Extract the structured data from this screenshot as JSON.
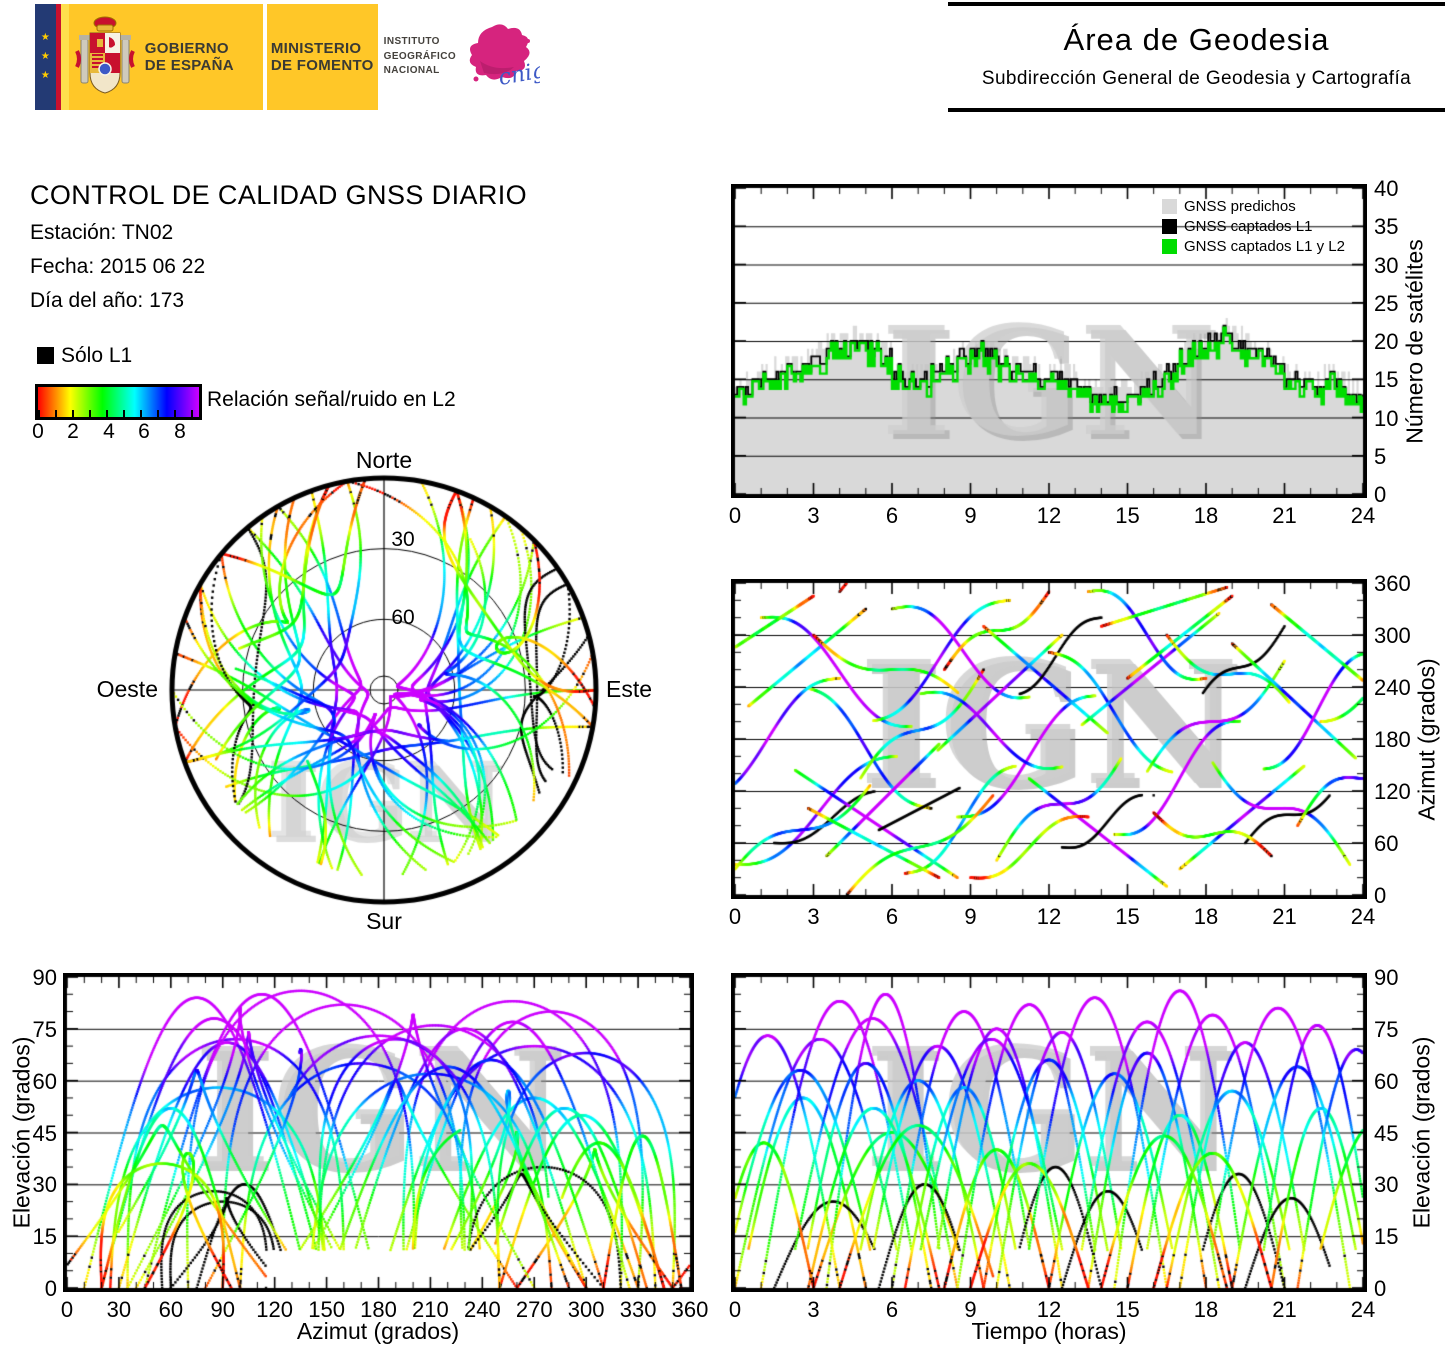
{
  "header": {
    "gobierno_line1": "GOBIERNO",
    "gobierno_line2": "DE ESPAÑA",
    "ministerio_line1": "MINISTERIO",
    "ministerio_line2": "DE FOMENTO",
    "instituto_lines": [
      "INSTITUTO",
      "GEOGRÁFICO",
      "NACIONAL"
    ],
    "cnig_text": "cnig",
    "area_title": "Área de Geodesia",
    "area_subtitle": "Subdirección General de Geodesia y Cartografía"
  },
  "info": {
    "title": "CONTROL DE CALIDAD GNSS DIARIO",
    "station": "Estación: TN02",
    "date": "Fecha: 2015 06 22",
    "doy": "Día del año: 173"
  },
  "legend": {
    "solo_l1_label": "Sólo L1",
    "colorbar_label": "Relación señal/ruido en L2",
    "colorbar_ticks": [
      "0",
      "2",
      "4",
      "6",
      "8"
    ],
    "colorbar_min": 0,
    "colorbar_max": 9
  },
  "watermark": "IGN",
  "colors": {
    "accent_yellow": "#ffc728",
    "navy": "#233a74",
    "flag_red": "#c8102e",
    "predicted_gray": "#d9d9d9",
    "captured_l1": "#000000",
    "captured_l1l2": "#00dd00"
  },
  "skyplot_labels": {
    "north": "Norte",
    "south": "Sur",
    "west": "Oeste",
    "east": "Este",
    "ring_labels": [
      "30",
      "60"
    ]
  },
  "chart_data": [
    {
      "id": "sat_count",
      "type": "area",
      "ylabel": "Número de satélites",
      "xlabel": "",
      "xlim": [
        0,
        24
      ],
      "ylim": [
        0,
        40
      ],
      "x_ticks": [
        0,
        3,
        6,
        9,
        12,
        15,
        18,
        21,
        24
      ],
      "y_ticks": [
        0,
        5,
        10,
        15,
        20,
        25,
        30,
        35,
        40
      ],
      "grid": [
        5,
        10,
        15,
        20,
        25,
        30,
        35
      ],
      "legend": [
        "GNSS predichos",
        "GNSS captados L1",
        "GNSS captados L1 y L2"
      ],
      "t_start": 0,
      "t_step": 0.5,
      "series": [
        {
          "name": "GNSS predichos",
          "values": [
            15,
            15,
            16,
            17,
            17,
            18,
            19,
            20,
            20,
            21,
            20,
            19,
            17,
            16,
            16,
            17,
            18,
            19,
            20,
            19,
            18,
            17,
            17,
            16,
            17,
            16,
            15,
            14,
            13,
            14,
            14,
            15,
            16,
            17,
            19,
            20,
            21,
            22,
            21,
            20,
            19,
            18,
            16,
            15,
            15,
            16,
            15,
            14,
            14
          ]
        },
        {
          "name": "GNSS captados L1",
          "values": [
            14,
            14,
            15,
            16,
            16,
            17,
            18,
            19,
            19,
            20,
            19,
            18,
            16,
            15,
            15,
            16,
            17,
            18,
            19,
            18,
            17,
            16,
            16,
            15,
            16,
            15,
            14,
            13,
            12,
            13,
            13,
            14,
            15,
            16,
            18,
            19,
            20,
            21,
            20,
            19,
            18,
            17,
            15,
            14,
            14,
            15,
            14,
            13,
            13
          ]
        },
        {
          "name": "GNSS captados L1 y L2",
          "values": [
            13,
            14,
            14,
            15,
            16,
            16,
            17,
            18,
            19,
            19,
            18,
            17,
            15,
            14,
            14,
            15,
            16,
            17,
            18,
            17,
            16,
            15,
            15,
            14,
            15,
            14,
            13,
            12,
            12,
            12,
            13,
            13,
            14,
            15,
            17,
            18,
            19,
            20,
            19,
            18,
            17,
            16,
            14,
            13,
            13,
            14,
            13,
            12,
            12
          ]
        }
      ]
    },
    {
      "id": "skyplot",
      "type": "scatter-polar",
      "compass": [
        "Norte",
        "Este",
        "Sur",
        "Oeste"
      ],
      "rings_elevation_deg": [
        30,
        60
      ],
      "source": "satellites"
    },
    {
      "id": "azimut_tiempo",
      "type": "scatter",
      "ylabel": "Azimut (grados)",
      "xlabel": "",
      "xlim": [
        0,
        24
      ],
      "ylim": [
        0,
        360
      ],
      "x_ticks": [
        0,
        3,
        6,
        9,
        12,
        15,
        18,
        21,
        24
      ],
      "y_ticks": [
        0,
        60,
        120,
        180,
        240,
        300,
        360
      ],
      "grid": [
        60,
        120,
        180,
        240,
        300
      ],
      "source": "satellites"
    },
    {
      "id": "elevacion_azimut",
      "type": "scatter",
      "ylabel": "Elevación (grados)",
      "xlabel": "Azimut (grados)",
      "xlim": [
        0,
        360
      ],
      "ylim": [
        0,
        90
      ],
      "x_ticks": [
        0,
        30,
        60,
        90,
        120,
        150,
        180,
        210,
        240,
        270,
        300,
        330,
        360
      ],
      "y_ticks": [
        0,
        15,
        30,
        45,
        60,
        75,
        90
      ],
      "grid": [
        15,
        30,
        45,
        60,
        75
      ],
      "source": "satellites"
    },
    {
      "id": "elevacion_tiempo",
      "type": "scatter",
      "ylabel": "Elevación (grados)",
      "xlabel": "Tiempo (horas)",
      "xlim": [
        0,
        24
      ],
      "ylim": [
        0,
        90
      ],
      "x_ticks": [
        0,
        3,
        6,
        9,
        12,
        15,
        18,
        21,
        24
      ],
      "y_ticks": [
        0,
        15,
        30,
        45,
        60,
        75,
        90
      ],
      "grid": [
        15,
        30,
        45,
        60,
        75
      ],
      "source": "satellites"
    }
  ],
  "satellites": {
    "columns": [
      "t_rise_h",
      "t_set_h",
      "az_rise_deg",
      "az_set_deg",
      "max_el_deg",
      "sn_bias",
      "l1_only"
    ],
    "rows": [
      [
        0.0,
        6.5,
        35,
        160,
        72,
        1.2,
        0
      ],
      [
        0.2,
        5.0,
        210,
        330,
        55,
        0.3,
        0
      ],
      [
        1.0,
        7.0,
        320,
        195,
        83,
        1.6,
        0
      ],
      [
        1.5,
        6.0,
        60,
        120,
        25,
        -1.0,
        1
      ],
      [
        2.0,
        8.5,
        150,
        20,
        78,
        1.4,
        0
      ],
      [
        2.5,
        7.5,
        240,
        100,
        65,
        0.8,
        0
      ],
      [
        3.0,
        9.0,
        300,
        220,
        45,
        -0.2,
        0
      ],
      [
        3.5,
        8.0,
        45,
        180,
        85,
        1.7,
        0
      ],
      [
        4.5,
        9.5,
        120,
        260,
        60,
        0.5,
        0
      ],
      [
        5.0,
        10.5,
        200,
        340,
        70,
        1.1,
        0
      ],
      [
        5.5,
        9.0,
        75,
        130,
        30,
        -1.2,
        1
      ],
      [
        6.0,
        11.5,
        330,
        230,
        80,
        1.5,
        0
      ],
      [
        6.5,
        11.0,
        25,
        150,
        58,
        0.4,
        0
      ],
      [
        7.5,
        12.5,
        160,
        300,
        75,
        1.3,
        0
      ],
      [
        8.0,
        12.0,
        260,
        350,
        40,
        -0.4,
        0
      ],
      [
        8.5,
        14.0,
        90,
        230,
        82,
        1.6,
        0
      ],
      [
        9.5,
        14.5,
        310,
        180,
        66,
        0.7,
        0
      ],
      [
        10.0,
        15.0,
        40,
        170,
        74,
        1.2,
        0
      ],
      [
        10.5,
        14.0,
        230,
        320,
        35,
        -0.9,
        1
      ],
      [
        11.0,
        16.5,
        140,
        10,
        84,
        1.7,
        0
      ],
      [
        12.0,
        17.0,
        280,
        140,
        62,
        0.6,
        0
      ],
      [
        12.5,
        16.0,
        55,
        115,
        28,
        -1.1,
        1
      ],
      [
        13.0,
        18.5,
        190,
        325,
        77,
        1.3,
        0
      ],
      [
        13.5,
        18.0,
        350,
        250,
        68,
        0.9,
        0
      ],
      [
        14.5,
        19.5,
        70,
        200,
        86,
        1.8,
        0
      ],
      [
        15.0,
        19.0,
        250,
        345,
        50,
        0.0,
        0
      ],
      [
        15.5,
        21.0,
        130,
        270,
        79,
        1.4,
        0
      ],
      [
        16.5,
        21.5,
        300,
        210,
        57,
        0.4,
        0
      ],
      [
        17.0,
        22.0,
        30,
        155,
        71,
        1.1,
        0
      ],
      [
        17.5,
        21.0,
        215,
        310,
        33,
        -1.0,
        1
      ],
      [
        18.0,
        23.5,
        165,
        35,
        81,
        1.5,
        0
      ],
      [
        19.0,
        24.0,
        290,
        150,
        64,
        0.7,
        0
      ],
      [
        19.5,
        23.0,
        60,
        125,
        26,
        -1.2,
        1
      ],
      [
        20.0,
        24.5,
        145,
        280,
        76,
        1.3,
        0
      ],
      [
        20.5,
        24.3,
        335,
        240,
        52,
        0.1,
        0
      ],
      [
        21.5,
        26.0,
        80,
        190,
        69,
        1.0,
        0
      ],
      [
        -1.5,
        4.0,
        110,
        250,
        73,
        1.2,
        0
      ],
      [
        -0.8,
        3.0,
        270,
        345,
        42,
        -0.5,
        0
      ],
      [
        -0.5,
        5.5,
        10,
        140,
        63,
        0.6,
        0
      ],
      [
        22.0,
        27.0,
        200,
        290,
        48,
        -0.1,
        0
      ],
      [
        2.8,
        7.8,
        100,
        20,
        52,
        0.2,
        0
      ],
      [
        4.0,
        10.0,
        350,
        120,
        47,
        -0.3,
        0
      ],
      [
        9.0,
        13.5,
        20,
        90,
        36,
        -0.8,
        0
      ],
      [
        14.0,
        18.8,
        310,
        355,
        44,
        -0.2,
        0
      ],
      [
        6.8,
        12.8,
        230,
        150,
        72,
        1.2,
        0
      ],
      [
        16.0,
        20.5,
        95,
        45,
        39,
        -0.6,
        0
      ]
    ]
  }
}
